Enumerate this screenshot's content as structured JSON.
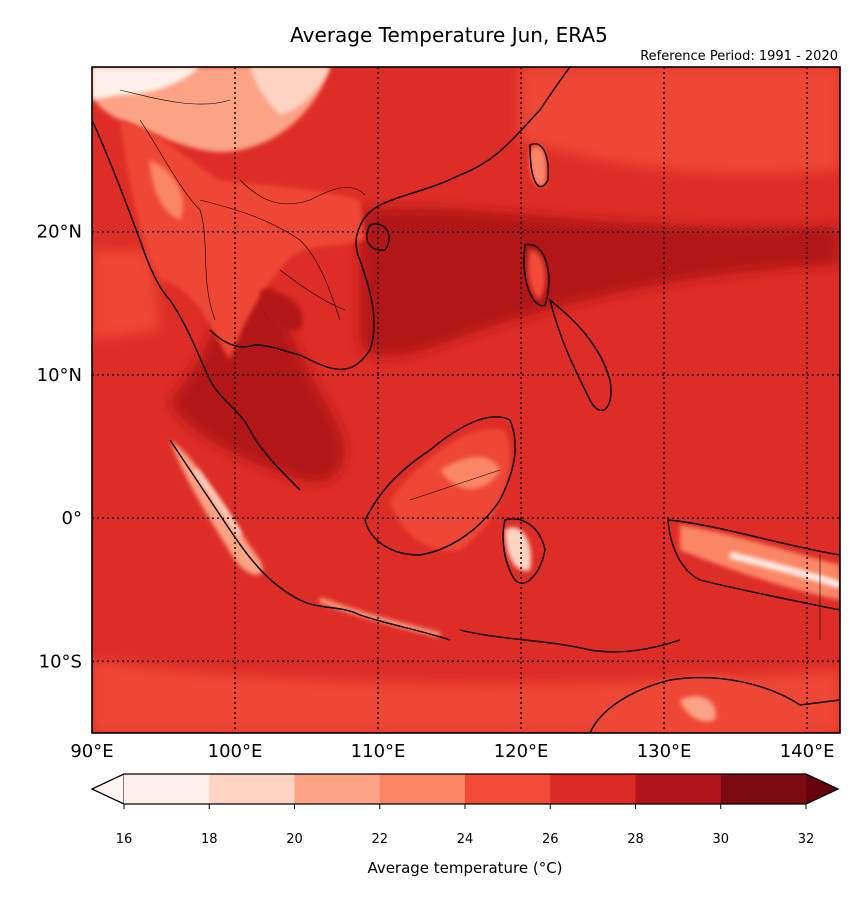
{
  "title": "Average Temperature Jun, ERA5",
  "subtitle": "Reference Period: 1991 - 2020",
  "map": {
    "lon_range": [
      90,
      142.3
    ],
    "lat_range": [
      -15,
      31.5
    ],
    "lon_ticks": [
      {
        "value": 90,
        "label": "90°E"
      },
      {
        "value": 100,
        "label": "100°E"
      },
      {
        "value": 110,
        "label": "110°E"
      },
      {
        "value": 120,
        "label": "120°E"
      },
      {
        "value": 130,
        "label": "130°E"
      },
      {
        "value": 140,
        "label": "140°E"
      }
    ],
    "lat_ticks": [
      {
        "value": 20,
        "label": "20°N"
      },
      {
        "value": 10,
        "label": "10°N"
      },
      {
        "value": 0,
        "label": "0°"
      },
      {
        "value": -10,
        "label": "10°S"
      }
    ],
    "gridlines": true
  },
  "colorbar": {
    "label": "Average temperature (°C)",
    "ticks": [
      "16",
      "18",
      "20",
      "22",
      "24",
      "26",
      "28",
      "30",
      "32"
    ],
    "colors": [
      "#fff0e9",
      "#fdd3c2",
      "#fca285",
      "#fb8666",
      "#f24c38",
      "#dd2a25",
      "#b31419",
      "#7d0911"
    ],
    "under_color": "#fff5f0",
    "over_color": "#67000d",
    "extend": "both"
  }
}
